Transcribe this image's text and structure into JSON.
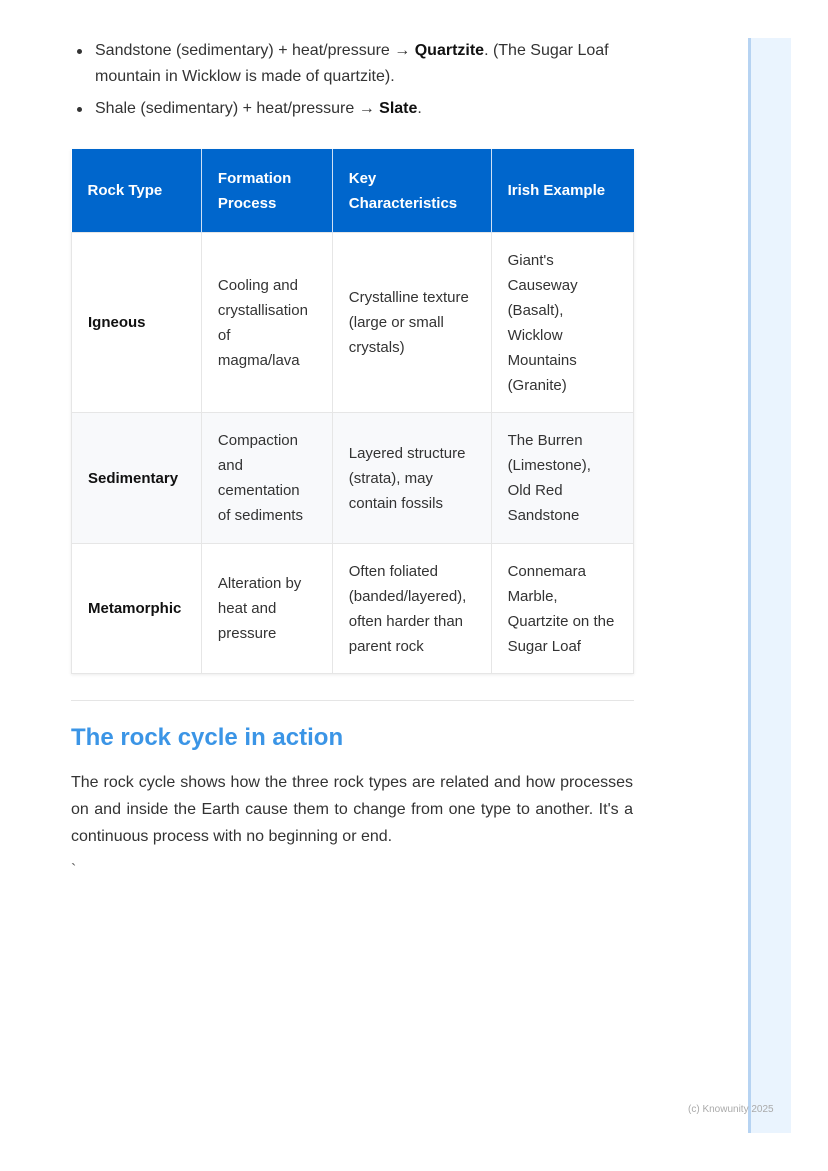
{
  "bullets": [
    {
      "pre": "Sandstone (sedimentary) + heat/pressure → ",
      "bold": "Quartzite",
      "post": ". (The Sugar Loaf mountain in Wicklow is made of quartzite)."
    },
    {
      "pre": "Shale (sedimentary) + heat/pressure → ",
      "bold": "Slate",
      "post": "."
    }
  ],
  "table": {
    "headers": [
      "Rock Type",
      "Formation Process",
      "Key Characteristics",
      "Irish Example"
    ],
    "rows": [
      [
        "Igneous",
        "Cooling and crystallisation of magma/lava",
        "Crystalline texture (large or small crystals)",
        "Giant's Causeway (Basalt), Wicklow Mountains (Granite)"
      ],
      [
        "Sedimentary",
        "Compaction and cementation of sediments",
        "Layered structure (strata), may contain fossils",
        "The Burren (Limestone), Old Red Sandstone"
      ],
      [
        "Metamorphic",
        "Alteration by heat and pressure",
        "Often foliated (banded/layered), often harder than parent rock",
        "Connemara Marble, Quartzite on the Sugar Loaf"
      ]
    ]
  },
  "section": {
    "heading": "The rock cycle in action",
    "paragraph": "The rock cycle shows how the three rock types are related and how processes on and inside the Earth cause them to change from one type to another. It's a continuous process with no beginning or end.",
    "trailing": "`"
  },
  "footer": "(c) Knowunity 2025",
  "colors": {
    "header_bg": "#0066cc",
    "heading": "#3b95e6",
    "sidebar": "#eaf4fe"
  }
}
